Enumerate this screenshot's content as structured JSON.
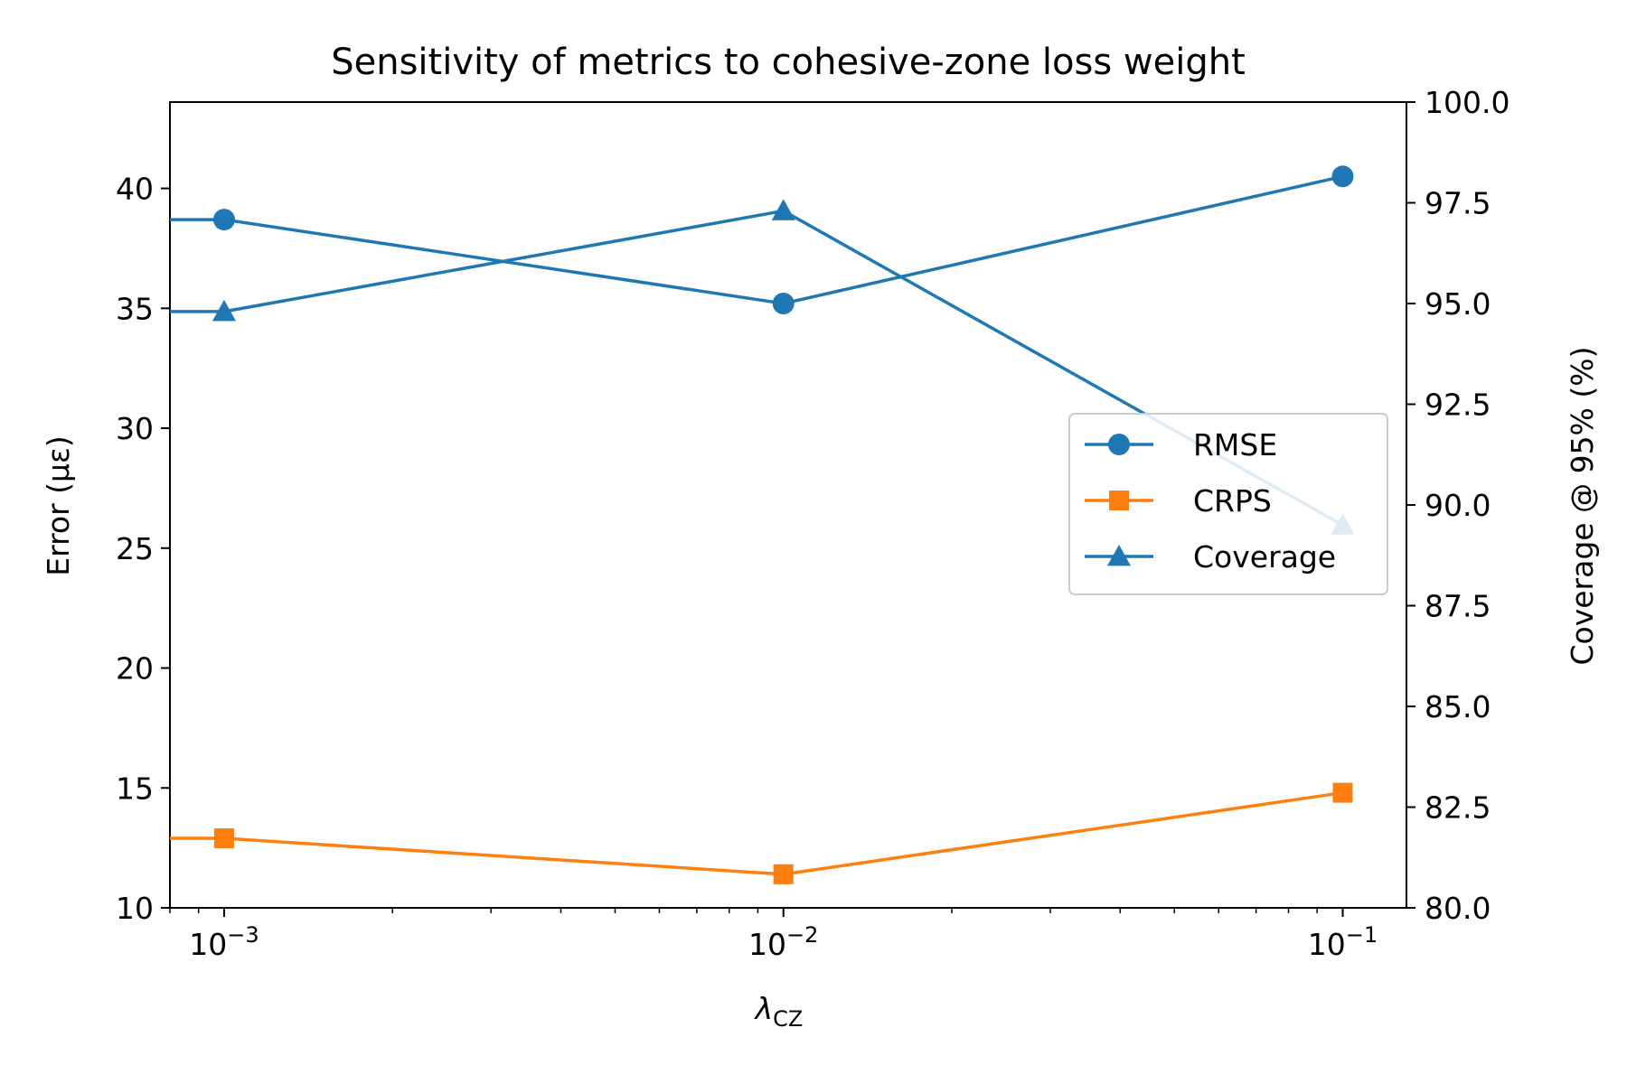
{
  "chart_data": {
    "type": "line",
    "title": "Sensitivity of metrics to cohesive-zone loss weight",
    "xlabel": "λ",
    "xlabel_sub": "CZ",
    "ylabel_left": "Error (με)",
    "ylabel_right": "Coverage @ 95% (%)",
    "x_scale": "log",
    "x": [
      0.001,
      0.01,
      0.1
    ],
    "x_ticks": [
      {
        "value": 0.001,
        "base": "10",
        "exp": "−3"
      },
      {
        "value": 0.01,
        "base": "10",
        "exp": "−2"
      },
      {
        "value": 0.1,
        "base": "10",
        "exp": "−1"
      }
    ],
    "xlim": [
      0.0008,
      0.13
    ],
    "ylim_left": [
      10,
      43.6
    ],
    "yticks_left": [
      "10",
      "15",
      "20",
      "25",
      "30",
      "35",
      "40"
    ],
    "ylim_right": [
      80,
      100
    ],
    "yticks_right": [
      "80.0",
      "82.5",
      "85.0",
      "87.5",
      "90.0",
      "92.5",
      "95.0",
      "97.5",
      "100.0"
    ],
    "grid": false,
    "legend_position": "center-right",
    "series": [
      {
        "name": "RMSE",
        "axis": "left",
        "marker": "circle",
        "color": "#1f77b4",
        "values": [
          38.7,
          35.2,
          40.5
        ]
      },
      {
        "name": "CRPS",
        "axis": "left",
        "marker": "square",
        "color": "#ff7f0e",
        "values": [
          12.9,
          11.4,
          14.8
        ]
      },
      {
        "name": "Coverage",
        "axis": "right",
        "marker": "triangle",
        "color": "#1f77b4",
        "values": [
          94.8,
          97.3,
          89.5
        ]
      }
    ]
  }
}
